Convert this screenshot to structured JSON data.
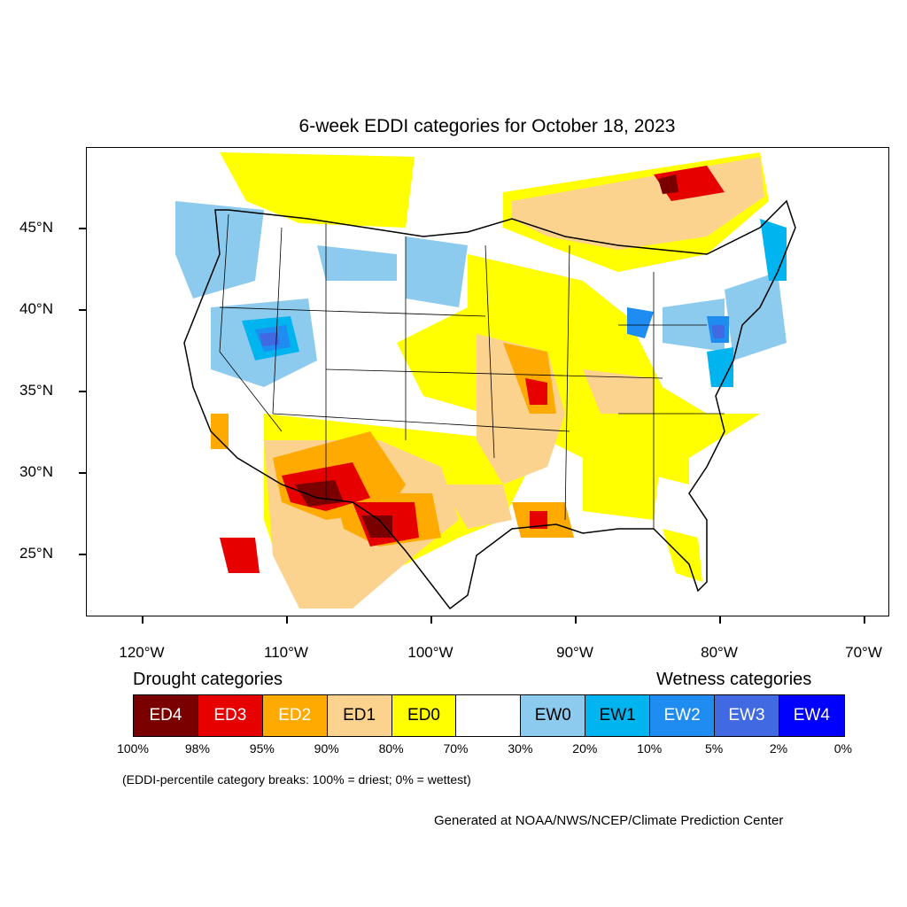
{
  "title": "6-week EDDI categories for October 18, 2023",
  "map": {
    "lat_ticks": [
      {
        "value": 45,
        "label": "45°N"
      },
      {
        "value": 40,
        "label": "40°N"
      },
      {
        "value": 35,
        "label": "35°N"
      },
      {
        "value": 30,
        "label": "30°N"
      },
      {
        "value": 25,
        "label": "25°N"
      }
    ],
    "lon_ticks": [
      {
        "value": -120,
        "label": "120°W"
      },
      {
        "value": -110,
        "label": "110°W"
      },
      {
        "value": -100,
        "label": "100°W"
      },
      {
        "value": -90,
        "label": "90°W"
      },
      {
        "value": -80,
        "label": "80°W"
      },
      {
        "value": -70,
        "label": "70°W"
      }
    ]
  },
  "legend": {
    "drought_heading": "Drought categories",
    "wetness_heading": "Wetness categories",
    "categories": [
      {
        "label": "ED4",
        "color": "#7a0000",
        "text_color": "#ffffff"
      },
      {
        "label": "ED3",
        "color": "#e60000",
        "text_color": "#ffffff"
      },
      {
        "label": "ED2",
        "color": "#ffaa00",
        "text_color": "#ffffff"
      },
      {
        "label": "ED1",
        "color": "#fcd38e",
        "text_color": "#000000"
      },
      {
        "label": "ED0",
        "color": "#ffff00",
        "text_color": "#000000"
      },
      {
        "label": "",
        "color": "#ffffff",
        "text_color": "#000000"
      },
      {
        "label": "EW0",
        "color": "#8ccbee",
        "text_color": "#000000"
      },
      {
        "label": "EW1",
        "color": "#00b4f0",
        "text_color": "#000000"
      },
      {
        "label": "EW2",
        "color": "#1e8cf0",
        "text_color": "#ffffff"
      },
      {
        "label": "EW3",
        "color": "#4169e1",
        "text_color": "#ffffff"
      },
      {
        "label": "EW4",
        "color": "#0000ff",
        "text_color": "#ffffff"
      }
    ],
    "percentiles": [
      "100%",
      "98%",
      "95%",
      "90%",
      "80%",
      "70%",
      "30%",
      "20%",
      "10%",
      "5%",
      "2%",
      "0%"
    ]
  },
  "note": "(EDDI-percentile category breaks: 100% = driest; 0% = wettest)",
  "credit": "Generated at NOAA/NWS/NCEP/Climate Prediction Center"
}
